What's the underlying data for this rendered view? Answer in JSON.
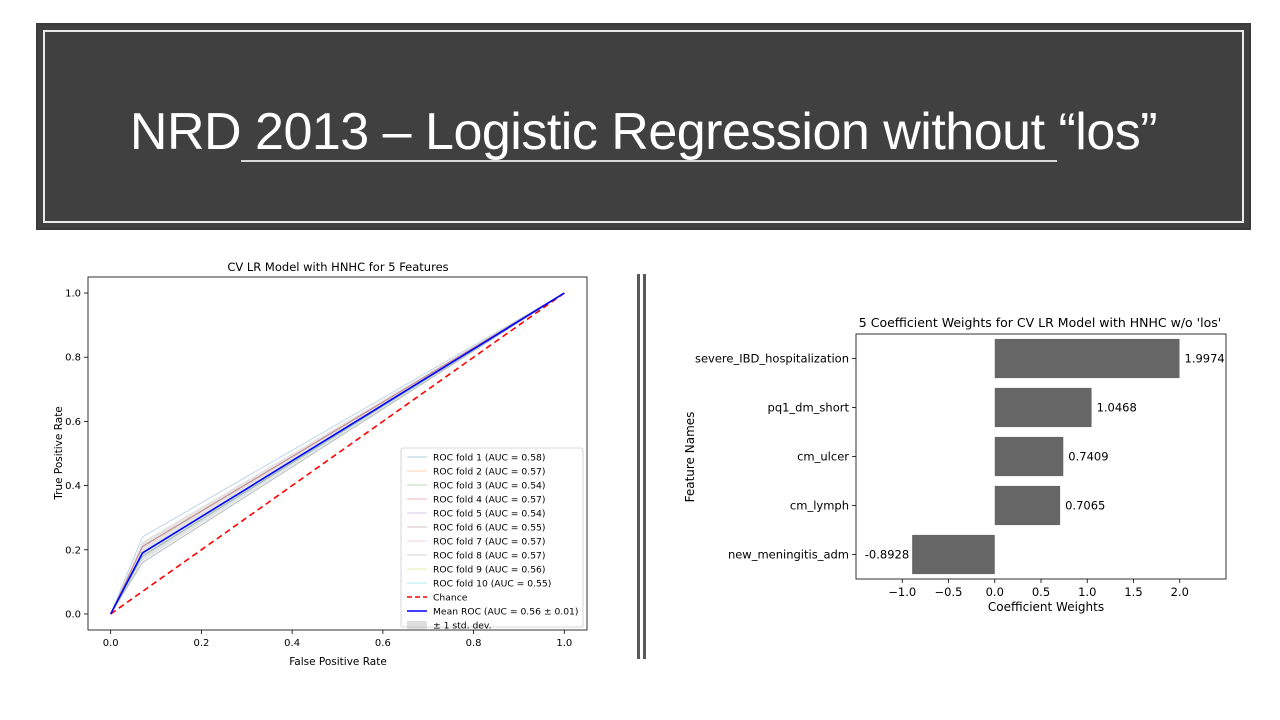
{
  "slide": {
    "title": "NRD 2013 – Logistic Regression without “los”"
  },
  "chart_data": [
    {
      "type": "line",
      "title": "CV LR Model with HNHC for 5 Features",
      "xlabel": "False Positive Rate",
      "ylabel": "True Positive Rate",
      "xlim": [
        -0.05,
        1.05
      ],
      "ylim": [
        -0.05,
        1.05
      ],
      "xticks": [
        "0.0",
        "0.2",
        "0.4",
        "0.6",
        "0.8",
        "1.0"
      ],
      "yticks": [
        "0.0",
        "0.2",
        "0.4",
        "0.6",
        "0.8",
        "1.0"
      ],
      "grid": false,
      "legend_position": "lower-right",
      "series": [
        {
          "name": "ROC fold 1 (AUC = 0.58)",
          "color": "#1f77b4",
          "x": [
            0,
            0.07,
            1
          ],
          "y": [
            0,
            0.24,
            1
          ]
        },
        {
          "name": "ROC fold 2 (AUC = 0.57)",
          "color": "#ff7f0e",
          "x": [
            0,
            0.07,
            1
          ],
          "y": [
            0,
            0.21,
            1
          ]
        },
        {
          "name": "ROC fold 3 (AUC = 0.54)",
          "color": "#2ca02c",
          "x": [
            0,
            0.07,
            1
          ],
          "y": [
            0,
            0.16,
            1
          ]
        },
        {
          "name": "ROC fold 4 (AUC = 0.57)",
          "color": "#d62728",
          "x": [
            0,
            0.07,
            1
          ],
          "y": [
            0,
            0.21,
            1
          ]
        },
        {
          "name": "ROC fold 5 (AUC = 0.54)",
          "color": "#9467bd",
          "x": [
            0,
            0.07,
            1
          ],
          "y": [
            0,
            0.16,
            1
          ]
        },
        {
          "name": "ROC fold 6 (AUC = 0.55)",
          "color": "#8c564b",
          "x": [
            0,
            0.07,
            1
          ],
          "y": [
            0,
            0.18,
            1
          ]
        },
        {
          "name": "ROC fold 7 (AUC = 0.57)",
          "color": "#e377c2",
          "x": [
            0,
            0.07,
            1
          ],
          "y": [
            0,
            0.21,
            1
          ]
        },
        {
          "name": "ROC fold 8 (AUC = 0.57)",
          "color": "#7f7f7f",
          "x": [
            0,
            0.07,
            1
          ],
          "y": [
            0,
            0.21,
            1
          ]
        },
        {
          "name": "ROC fold 9 (AUC = 0.56)",
          "color": "#bcbd22",
          "x": [
            0,
            0.07,
            1
          ],
          "y": [
            0,
            0.19,
            1
          ]
        },
        {
          "name": "ROC fold 10 (AUC = 0.55)",
          "color": "#17becf",
          "x": [
            0,
            0.07,
            1
          ],
          "y": [
            0,
            0.18,
            1
          ]
        },
        {
          "name": "Chance",
          "color": "#ff0000",
          "style": "dashed",
          "x": [
            0,
            1
          ],
          "y": [
            0,
            1
          ]
        },
        {
          "name": "Mean ROC (AUC = 0.56 ± 0.01)",
          "color": "#0000ff",
          "x": [
            0,
            0.07,
            1
          ],
          "y": [
            0,
            0.19,
            1
          ]
        }
      ],
      "band": {
        "name": "± 1 std. dev.",
        "color": "#b0b0b0",
        "x": [
          0,
          0.07,
          1
        ],
        "lower": [
          0,
          0.165,
          1
        ],
        "upper": [
          0,
          0.225,
          1
        ]
      }
    },
    {
      "type": "bar",
      "orientation": "horizontal",
      "title": "5 Coefficient Weights for CV LR Model with HNHC w/o 'los'",
      "xlabel": "Coefficient Weights",
      "ylabel": "Feature Names",
      "xlim": [
        -1.5,
        2.5
      ],
      "xticks": [
        -1.0,
        -0.5,
        0.0,
        0.5,
        1.0,
        1.5,
        2.0
      ],
      "xtick_labels": [
        "−1.0",
        "−0.5",
        "0.0",
        "0.5",
        "1.0",
        "1.5",
        "2.0"
      ],
      "bar_color": "#666666",
      "categories": [
        "severe_IBD_hospitalization",
        "pq1_dm_short",
        "cm_ulcer",
        "cm_lymph",
        "new_meningitis_adm"
      ],
      "values": [
        1.9974,
        1.0468,
        0.7409,
        0.7065,
        -0.8928
      ],
      "labels": [
        "1.9974",
        "1.0468",
        "0.7409",
        "0.7065",
        "-0.8928"
      ]
    }
  ]
}
